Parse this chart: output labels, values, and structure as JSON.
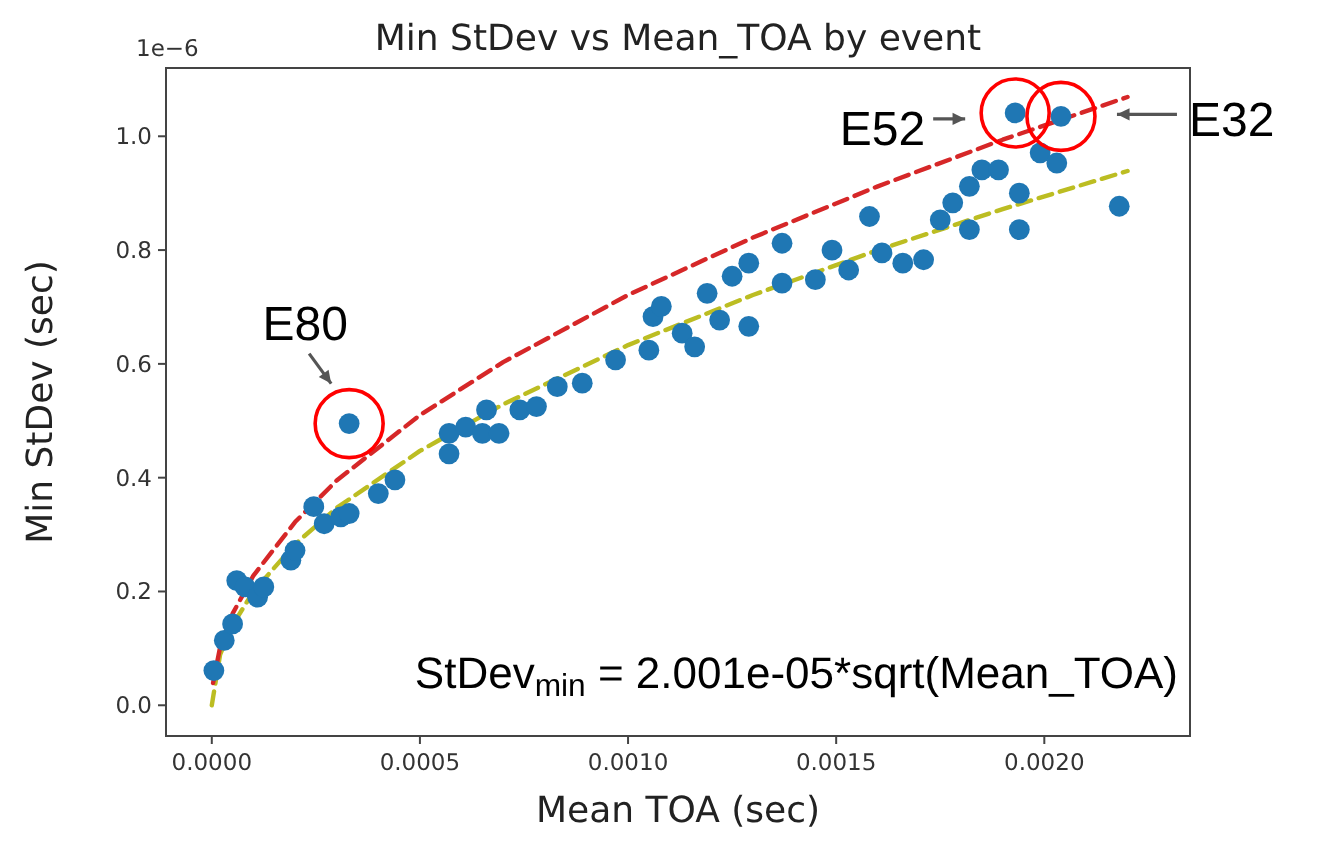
{
  "chart_data": {
    "type": "scatter",
    "title": "Min StDev vs Mean_TOA by event",
    "xlabel": "Mean TOA (sec)",
    "ylabel": "Min StDev (sec)",
    "xlim": [
      -0.00011,
      0.00235
    ],
    "ylim": [
      -0.054,
      1.12
    ],
    "xticks": [
      {
        "value": 0,
        "label": "0.0000"
      },
      {
        "value": 0.0005,
        "label": "0.0005"
      },
      {
        "value": 0.001,
        "label": "0.0010"
      },
      {
        "value": 0.0015,
        "label": "0.0015"
      },
      {
        "value": 0.002,
        "label": "0.0020"
      }
    ],
    "yticks": [
      {
        "value": 0,
        "label": "0.0"
      },
      {
        "value": 0.2,
        "label": "0.2"
      },
      {
        "value": 0.4,
        "label": "0.4"
      },
      {
        "value": 0.6,
        "label": "0.6"
      },
      {
        "value": 0.8,
        "label": "0.8"
      },
      {
        "value": 1,
        "label": "1.0"
      }
    ],
    "grid": false,
    "marker": "circle",
    "series": [
      {
        "type": "line",
        "color": "#bcbd22",
        "line_style": "dashed",
        "marker": "none",
        "x": [
          0,
          2e-05,
          5e-05,
          0.0001,
          0.0002,
          0.0003,
          0.0005,
          0.0007,
          0.001,
          0.0013,
          0.0016,
          0.0019,
          0.0022
        ],
        "values": [
          0,
          0.089,
          0.141,
          0.2,
          0.283,
          0.347,
          0.447,
          0.529,
          0.633,
          0.721,
          0.8,
          0.872,
          0.939
        ]
      },
      {
        "type": "line",
        "color": "#d62728",
        "line_style": "dashed",
        "marker": "none",
        "x": [
          3e-06,
          2e-05,
          5e-05,
          0.0001,
          0.0002,
          0.0003,
          0.0005,
          0.0007,
          0.001,
          0.0013,
          0.0016,
          0.0019,
          0.0022
        ],
        "values": [
          0.039,
          0.102,
          0.161,
          0.228,
          0.322,
          0.395,
          0.51,
          0.603,
          0.721,
          0.822,
          0.912,
          0.994,
          1.069
        ]
      },
      {
        "color": "#1f77b4",
        "x": [
          5e-06,
          3e-05,
          5e-05,
          6e-05,
          8e-05,
          0.00011,
          0.000125,
          0.00019,
          0.0002,
          0.000245,
          0.00027,
          0.00031,
          0.00033,
          0.00033,
          0.0004,
          0.00044,
          0.00057,
          0.00057,
          0.00061,
          0.00065,
          0.00069,
          0.00066,
          0.00074,
          0.00078,
          0.00083,
          0.00089,
          0.00097,
          0.00105,
          0.00106,
          0.00108,
          0.00113,
          0.00116,
          0.00119,
          0.00122,
          0.00125,
          0.00129,
          0.00129,
          0.00137,
          0.00137,
          0.00145,
          0.00149,
          0.00153,
          0.00158,
          0.00161,
          0.00166,
          0.00171,
          0.00175,
          0.00178,
          0.00182,
          0.00182,
          0.00185,
          0.00189,
          0.00194,
          0.00194,
          0.00193,
          0.00204,
          0.00199,
          0.00203,
          0.00218
        ],
        "values": [
          0.061,
          0.114,
          0.143,
          0.219,
          0.208,
          0.19,
          0.208,
          0.255,
          0.272,
          0.349,
          0.319,
          0.331,
          0.337,
          0.495,
          0.372,
          0.396,
          0.442,
          0.478,
          0.489,
          0.478,
          0.478,
          0.519,
          0.519,
          0.525,
          0.56,
          0.566,
          0.607,
          0.624,
          0.683,
          0.701,
          0.654,
          0.63,
          0.724,
          0.677,
          0.754,
          0.777,
          0.666,
          0.742,
          0.812,
          0.748,
          0.8,
          0.765,
          0.859,
          0.795,
          0.777,
          0.783,
          0.853,
          0.883,
          0.836,
          0.912,
          0.941,
          0.941,
          0.9,
          0.836,
          1.041,
          1.035,
          0.971,
          0.953,
          0.877
        ]
      }
    ],
    "annotations": [
      "1e−6",
      "StDev$_{min}$ = 2.001e-05*sqrt(Mean_TOA)",
      {
        "text": "E80",
        "x": 0.00033,
        "y": 0.495
      },
      {
        "text": "E52",
        "x": 0.00193,
        "y": 1.041
      },
      {
        "text": "E32",
        "x": 0.00204,
        "y": 1.035
      }
    ]
  }
}
